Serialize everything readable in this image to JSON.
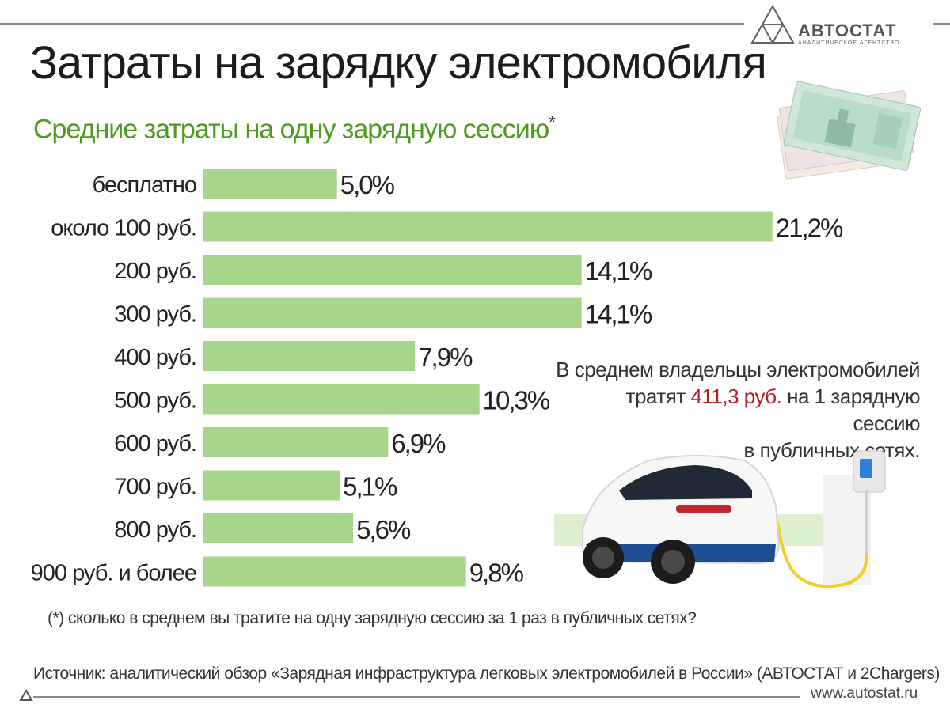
{
  "title": "Затраты на зарядку электромобиля",
  "subtitle": "Средние затраты на одну зарядную сессию",
  "subtitle_mark": "*",
  "logo": {
    "name": "АВТОСТАТ",
    "tagline": "АНАЛИТИЧЕСКОЕ АГЕНТСТВО"
  },
  "note": {
    "line1": "В среднем владельцы электромобилей",
    "line2_before": "тратят",
    "line2_highlight": "411,3 руб.",
    "line2_after": "на 1 зарядную сессию",
    "line3": "в публичных сетях."
  },
  "footnote": "(*) сколько в среднем вы тратите на одну зарядную сессию за 1 раз в публичных сетях?",
  "source": "Источник: аналитический обзор «Зарядная инфраструктура легковых электромобилей в России» (АВТОСТАТ и 2Chargers)",
  "website": "www.autostat.ru",
  "colors": {
    "bar": "#a8d58c",
    "title_green": "#4e9a1e",
    "highlight": "#b22222"
  },
  "chart_data": {
    "type": "bar",
    "orientation": "horizontal",
    "categories": [
      "бесплатно",
      "около 100 руб.",
      "200 руб.",
      "300 руб.",
      "400 руб.",
      "500 руб.",
      "600 руб.",
      "700 руб.",
      "800 руб.",
      "900 руб. и более"
    ],
    "values": [
      5.0,
      21.2,
      14.1,
      14.1,
      7.9,
      10.3,
      6.9,
      5.1,
      5.6,
      9.8
    ],
    "value_labels": [
      "5,0%",
      "21,2%",
      "14,1%",
      "14,1%",
      "7,9%",
      "10,3%",
      "6,9%",
      "5,1%",
      "5,6%",
      "9,8%"
    ],
    "unit": "%"
  }
}
